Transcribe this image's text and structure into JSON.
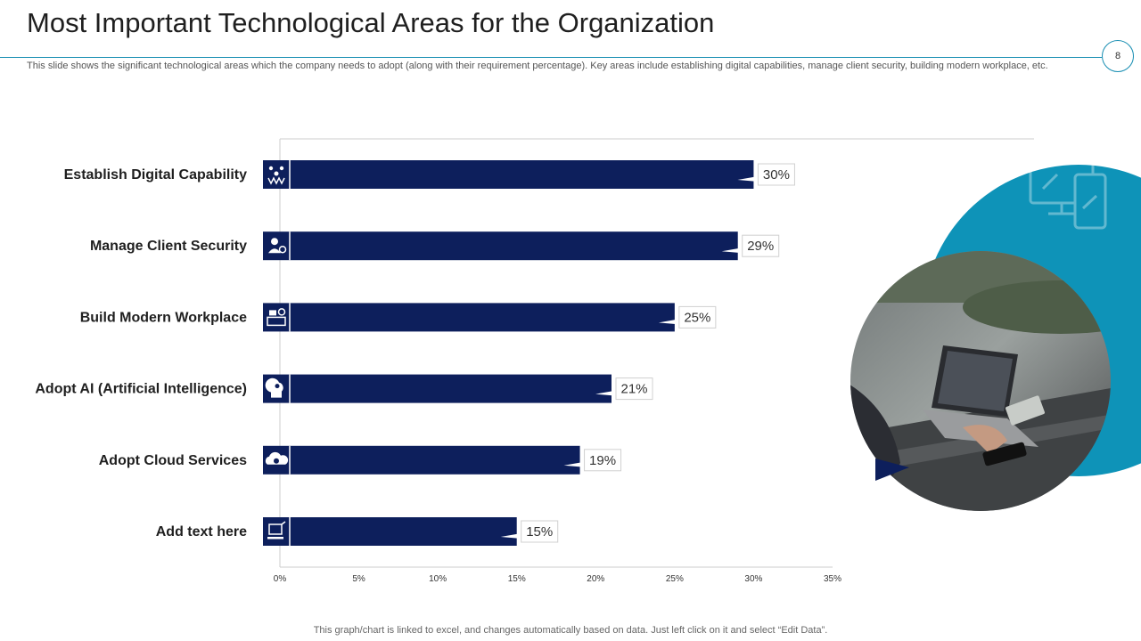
{
  "slide": {
    "title": "Most Important Technological Areas for the Organization",
    "subtitle": "This slide shows the significant technological areas which the company needs to adopt (along with their requirement percentage). Key areas include establishing digital capabilities, manage client security, building modern workplace, etc.",
    "page_number": "8",
    "footer": "This graph/chart is linked to excel,  and changes automatically based on data. Just left click on it and select “Edit Data”."
  },
  "colors": {
    "bar": "#0d1f5c",
    "accent": "#0e93b8",
    "axis": "#cccccc"
  },
  "chart_data": {
    "type": "bar",
    "orientation": "horizontal",
    "categories": [
      "Establish Digital Capability",
      "Manage Client Security",
      "Build Modern Workplace",
      "Adopt AI (Artificial Intelligence)",
      "Adopt Cloud Services",
      "Add text here"
    ],
    "icons": [
      "network-icon",
      "user-security-icon",
      "workplace-icon",
      "ai-head-icon",
      "cloud-icon",
      "computer-icon"
    ],
    "values": [
      30,
      29,
      25,
      21,
      19,
      15
    ],
    "value_labels": [
      "30%",
      "29%",
      "25%",
      "21%",
      "19%",
      "15%"
    ],
    "xlim": [
      0,
      35
    ],
    "xticks": [
      "0%",
      "5%",
      "10%",
      "15%",
      "20%",
      "25%",
      "30%",
      "35%"
    ],
    "grid": false,
    "legend": "none"
  }
}
